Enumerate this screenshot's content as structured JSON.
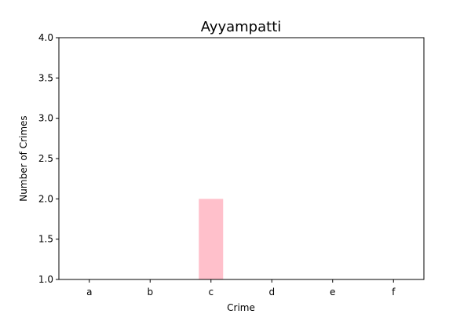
{
  "chart_data": {
    "type": "bar",
    "title": "Ayyampatti",
    "xlabel": "Crime",
    "ylabel": "Number of Crimes",
    "categories": [
      "a",
      "b",
      "c",
      "d",
      "e",
      "f"
    ],
    "values": [
      null,
      null,
      2,
      null,
      null,
      null
    ],
    "ylim": [
      1.0,
      4.0
    ],
    "yticks": [
      "1.0",
      "1.5",
      "2.0",
      "2.5",
      "3.0",
      "3.5",
      "4.0"
    ],
    "bar_color": "#ffc0cb",
    "grid": false
  }
}
